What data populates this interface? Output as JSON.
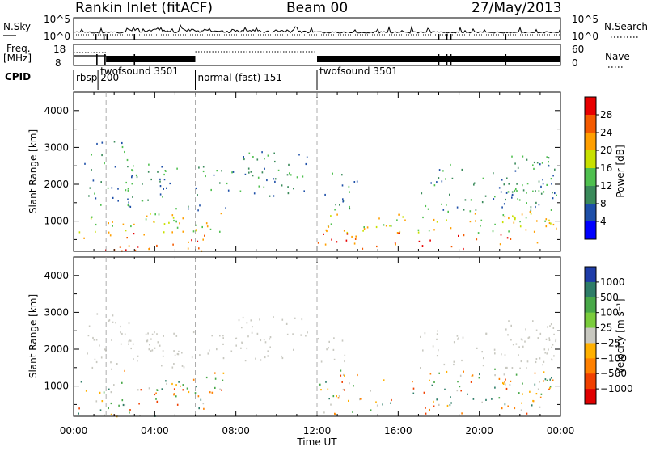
{
  "header": {
    "station": "Rankin Inlet (fitACF)",
    "beam": "Beam 00",
    "date": "27/May/2013"
  },
  "panels": {
    "noise": {
      "left_label": "N.Sky",
      "left_ticks": [
        "10^5",
        "10^0"
      ],
      "right_label": "N.Search",
      "right_ticks": [
        "10^5",
        "10^0"
      ]
    },
    "freq": {
      "left_label_1": "Freq.",
      "left_label_2": "[MHz]",
      "left_ticks": [
        "18",
        "8"
      ],
      "right_label": "Nave",
      "right_ticks": [
        "60",
        "0"
      ]
    },
    "cpid": {
      "label": "CPID",
      "segments": [
        {
          "name": "rbsp 200",
          "start": 0,
          "end": 1.2
        },
        {
          "name": "twofsound 3501",
          "start": 1.2,
          "end": 6.0
        },
        {
          "name": "normal (fast) 151",
          "start": 6.0,
          "end": 12.0
        },
        {
          "name": "twofsound 3501",
          "start": 12.0,
          "end": 24.0
        }
      ]
    }
  },
  "chart_data": [
    {
      "type": "heatmap",
      "name": "power",
      "ylabel": "Slant Range [km]",
      "xlabel": "",
      "ylim": [
        180,
        4500
      ],
      "yticks": [
        1000,
        2000,
        3000,
        4000
      ],
      "xlim": [
        0,
        24
      ],
      "colorbar": {
        "label": "Power [dB]",
        "ticks": [
          "28",
          "24",
          "20",
          "16",
          "12",
          "8",
          "4"
        ],
        "colors": [
          "#e80000",
          "#f45a00",
          "#ff9f00",
          "#c8e000",
          "#4fc04f",
          "#3a8a5a",
          "#1e4fa8",
          "#0000ff"
        ]
      }
    },
    {
      "type": "heatmap",
      "name": "velocity",
      "ylabel": "Slant Range [km]",
      "xlabel": "Time UT",
      "ylim": [
        180,
        4500
      ],
      "yticks": [
        1000,
        2000,
        3000,
        4000
      ],
      "xlim": [
        0,
        24
      ],
      "xticks": [
        "00:00",
        "04:00",
        "08:00",
        "12:00",
        "16:00",
        "20:00",
        "00:00"
      ],
      "colorbar": {
        "label": "Velocity [m s⁻¹]",
        "ticks": [
          "1000",
          "500",
          "100",
          "25",
          "−25",
          "−100",
          "−500",
          "−1000"
        ],
        "colors": [
          "#1e3ca8",
          "#2e7d68",
          "#48a848",
          "#7acc3c",
          "#c8c8c0",
          "#ffb000",
          "#ff8000",
          "#f04000",
          "#e00000"
        ]
      }
    }
  ]
}
